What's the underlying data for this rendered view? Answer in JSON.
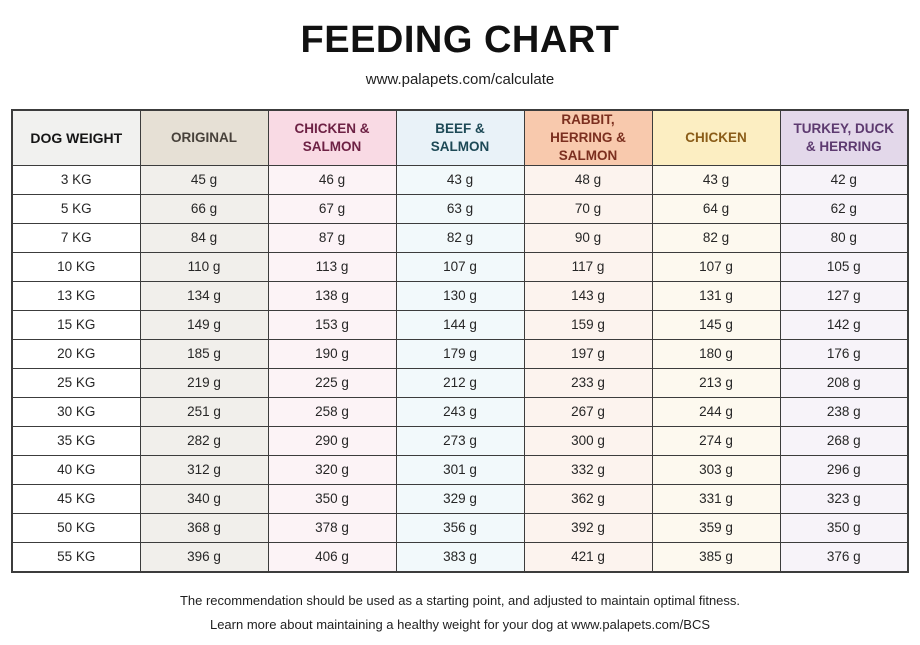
{
  "header": {
    "title": "FEEDING CHART",
    "subtitle": "www.palapets.com/calculate"
  },
  "table": {
    "weight_header": "DOG WEIGHT",
    "columns": [
      {
        "label": "ORIGINAL",
        "header_bg": "#e6e0d5",
        "header_color": "#47413a",
        "cell_bg": "#f1efeb"
      },
      {
        "label": "CHICKEN & SALMON",
        "header_bg": "#f9dae4",
        "header_color": "#6d2144",
        "cell_bg": "#fcf3f6"
      },
      {
        "label": "BEEF & SALMON",
        "header_bg": "#e9f2f8",
        "header_color": "#1d4956",
        "cell_bg": "#f2f9fb"
      },
      {
        "label": "RABBIT, HERRING & SALMON",
        "header_bg": "#f8c9ad",
        "header_color": "#7b2f1f",
        "cell_bg": "#fcf3ee"
      },
      {
        "label": "CHICKEN",
        "header_bg": "#fceec2",
        "header_color": "#8a5c18",
        "cell_bg": "#fdf9ef"
      },
      {
        "label": "TURKEY, DUCK & HERRING",
        "header_bg": "#e3d8ea",
        "header_color": "#5d3a70",
        "cell_bg": "#f7f3f9"
      }
    ],
    "rows": [
      {
        "weight": "3 KG",
        "values": [
          "45 g",
          "46 g",
          "43 g",
          "48 g",
          "43 g",
          "42 g"
        ]
      },
      {
        "weight": "5 KG",
        "values": [
          "66 g",
          "67 g",
          "63 g",
          "70 g",
          "64 g",
          "62 g"
        ]
      },
      {
        "weight": "7 KG",
        "values": [
          "84 g",
          "87 g",
          "82 g",
          "90 g",
          "82 g",
          "80 g"
        ]
      },
      {
        "weight": "10 KG",
        "values": [
          "110 g",
          "113 g",
          "107 g",
          "117 g",
          "107 g",
          "105 g"
        ]
      },
      {
        "weight": "13 KG",
        "values": [
          "134 g",
          "138 g",
          "130 g",
          "143 g",
          "131 g",
          "127 g"
        ]
      },
      {
        "weight": "15 KG",
        "values": [
          "149 g",
          "153 g",
          "144 g",
          "159 g",
          "145 g",
          "142 g"
        ]
      },
      {
        "weight": "20 KG",
        "values": [
          "185 g",
          "190 g",
          "179 g",
          "197 g",
          "180 g",
          "176 g"
        ]
      },
      {
        "weight": "25 KG",
        "values": [
          "219 g",
          "225 g",
          "212 g",
          "233 g",
          "213 g",
          "208 g"
        ]
      },
      {
        "weight": "30 KG",
        "values": [
          "251 g",
          "258 g",
          "243 g",
          "267 g",
          "244 g",
          "238 g"
        ]
      },
      {
        "weight": "35 KG",
        "values": [
          "282 g",
          "290 g",
          "273 g",
          "300 g",
          "274 g",
          "268 g"
        ]
      },
      {
        "weight": "40 KG",
        "values": [
          "312 g",
          "320 g",
          "301 g",
          "332 g",
          "303 g",
          "296 g"
        ]
      },
      {
        "weight": "45 KG",
        "values": [
          "340 g",
          "350 g",
          "329 g",
          "362 g",
          "331 g",
          "323 g"
        ]
      },
      {
        "weight": "50 KG",
        "values": [
          "368 g",
          "378 g",
          "356 g",
          "392 g",
          "359 g",
          "350 g"
        ]
      },
      {
        "weight": "55 KG",
        "values": [
          "396 g",
          "406 g",
          "383 g",
          "421 g",
          "385 g",
          "376 g"
        ]
      }
    ]
  },
  "footer": {
    "line1": "The recommendation should be used as a starting point, and adjusted to maintain optimal fitness.",
    "line2": "Learn more about maintaining a healthy weight for your dog at www.palapets.com/BCS"
  },
  "chart_data": {
    "type": "table",
    "title": "FEEDING CHART",
    "subtitle": "www.palapets.com/calculate",
    "columns": [
      "DOG WEIGHT",
      "ORIGINAL",
      "CHICKEN & SALMON",
      "BEEF & SALMON",
      "RABBIT, HERRING & SALMON",
      "CHICKEN",
      "TURKEY, DUCK & HERRING"
    ],
    "unit": "g",
    "rows": [
      [
        "3 KG",
        45,
        46,
        43,
        48,
        43,
        42
      ],
      [
        "5 KG",
        66,
        67,
        63,
        70,
        64,
        62
      ],
      [
        "7 KG",
        84,
        87,
        82,
        90,
        82,
        80
      ],
      [
        "10 KG",
        110,
        113,
        107,
        117,
        107,
        105
      ],
      [
        "13 KG",
        134,
        138,
        130,
        143,
        131,
        127
      ],
      [
        "15 KG",
        149,
        153,
        144,
        159,
        145,
        142
      ],
      [
        "20 KG",
        185,
        190,
        179,
        197,
        180,
        176
      ],
      [
        "25 KG",
        219,
        225,
        212,
        233,
        213,
        208
      ],
      [
        "30 KG",
        251,
        258,
        243,
        267,
        244,
        238
      ],
      [
        "35 KG",
        282,
        290,
        273,
        300,
        274,
        268
      ],
      [
        "40 KG",
        312,
        320,
        301,
        332,
        303,
        296
      ],
      [
        "45 KG",
        340,
        350,
        329,
        362,
        331,
        323
      ],
      [
        "50 KG",
        368,
        378,
        356,
        392,
        359,
        350
      ],
      [
        "55 KG",
        396,
        406,
        383,
        421,
        385,
        376
      ]
    ]
  }
}
